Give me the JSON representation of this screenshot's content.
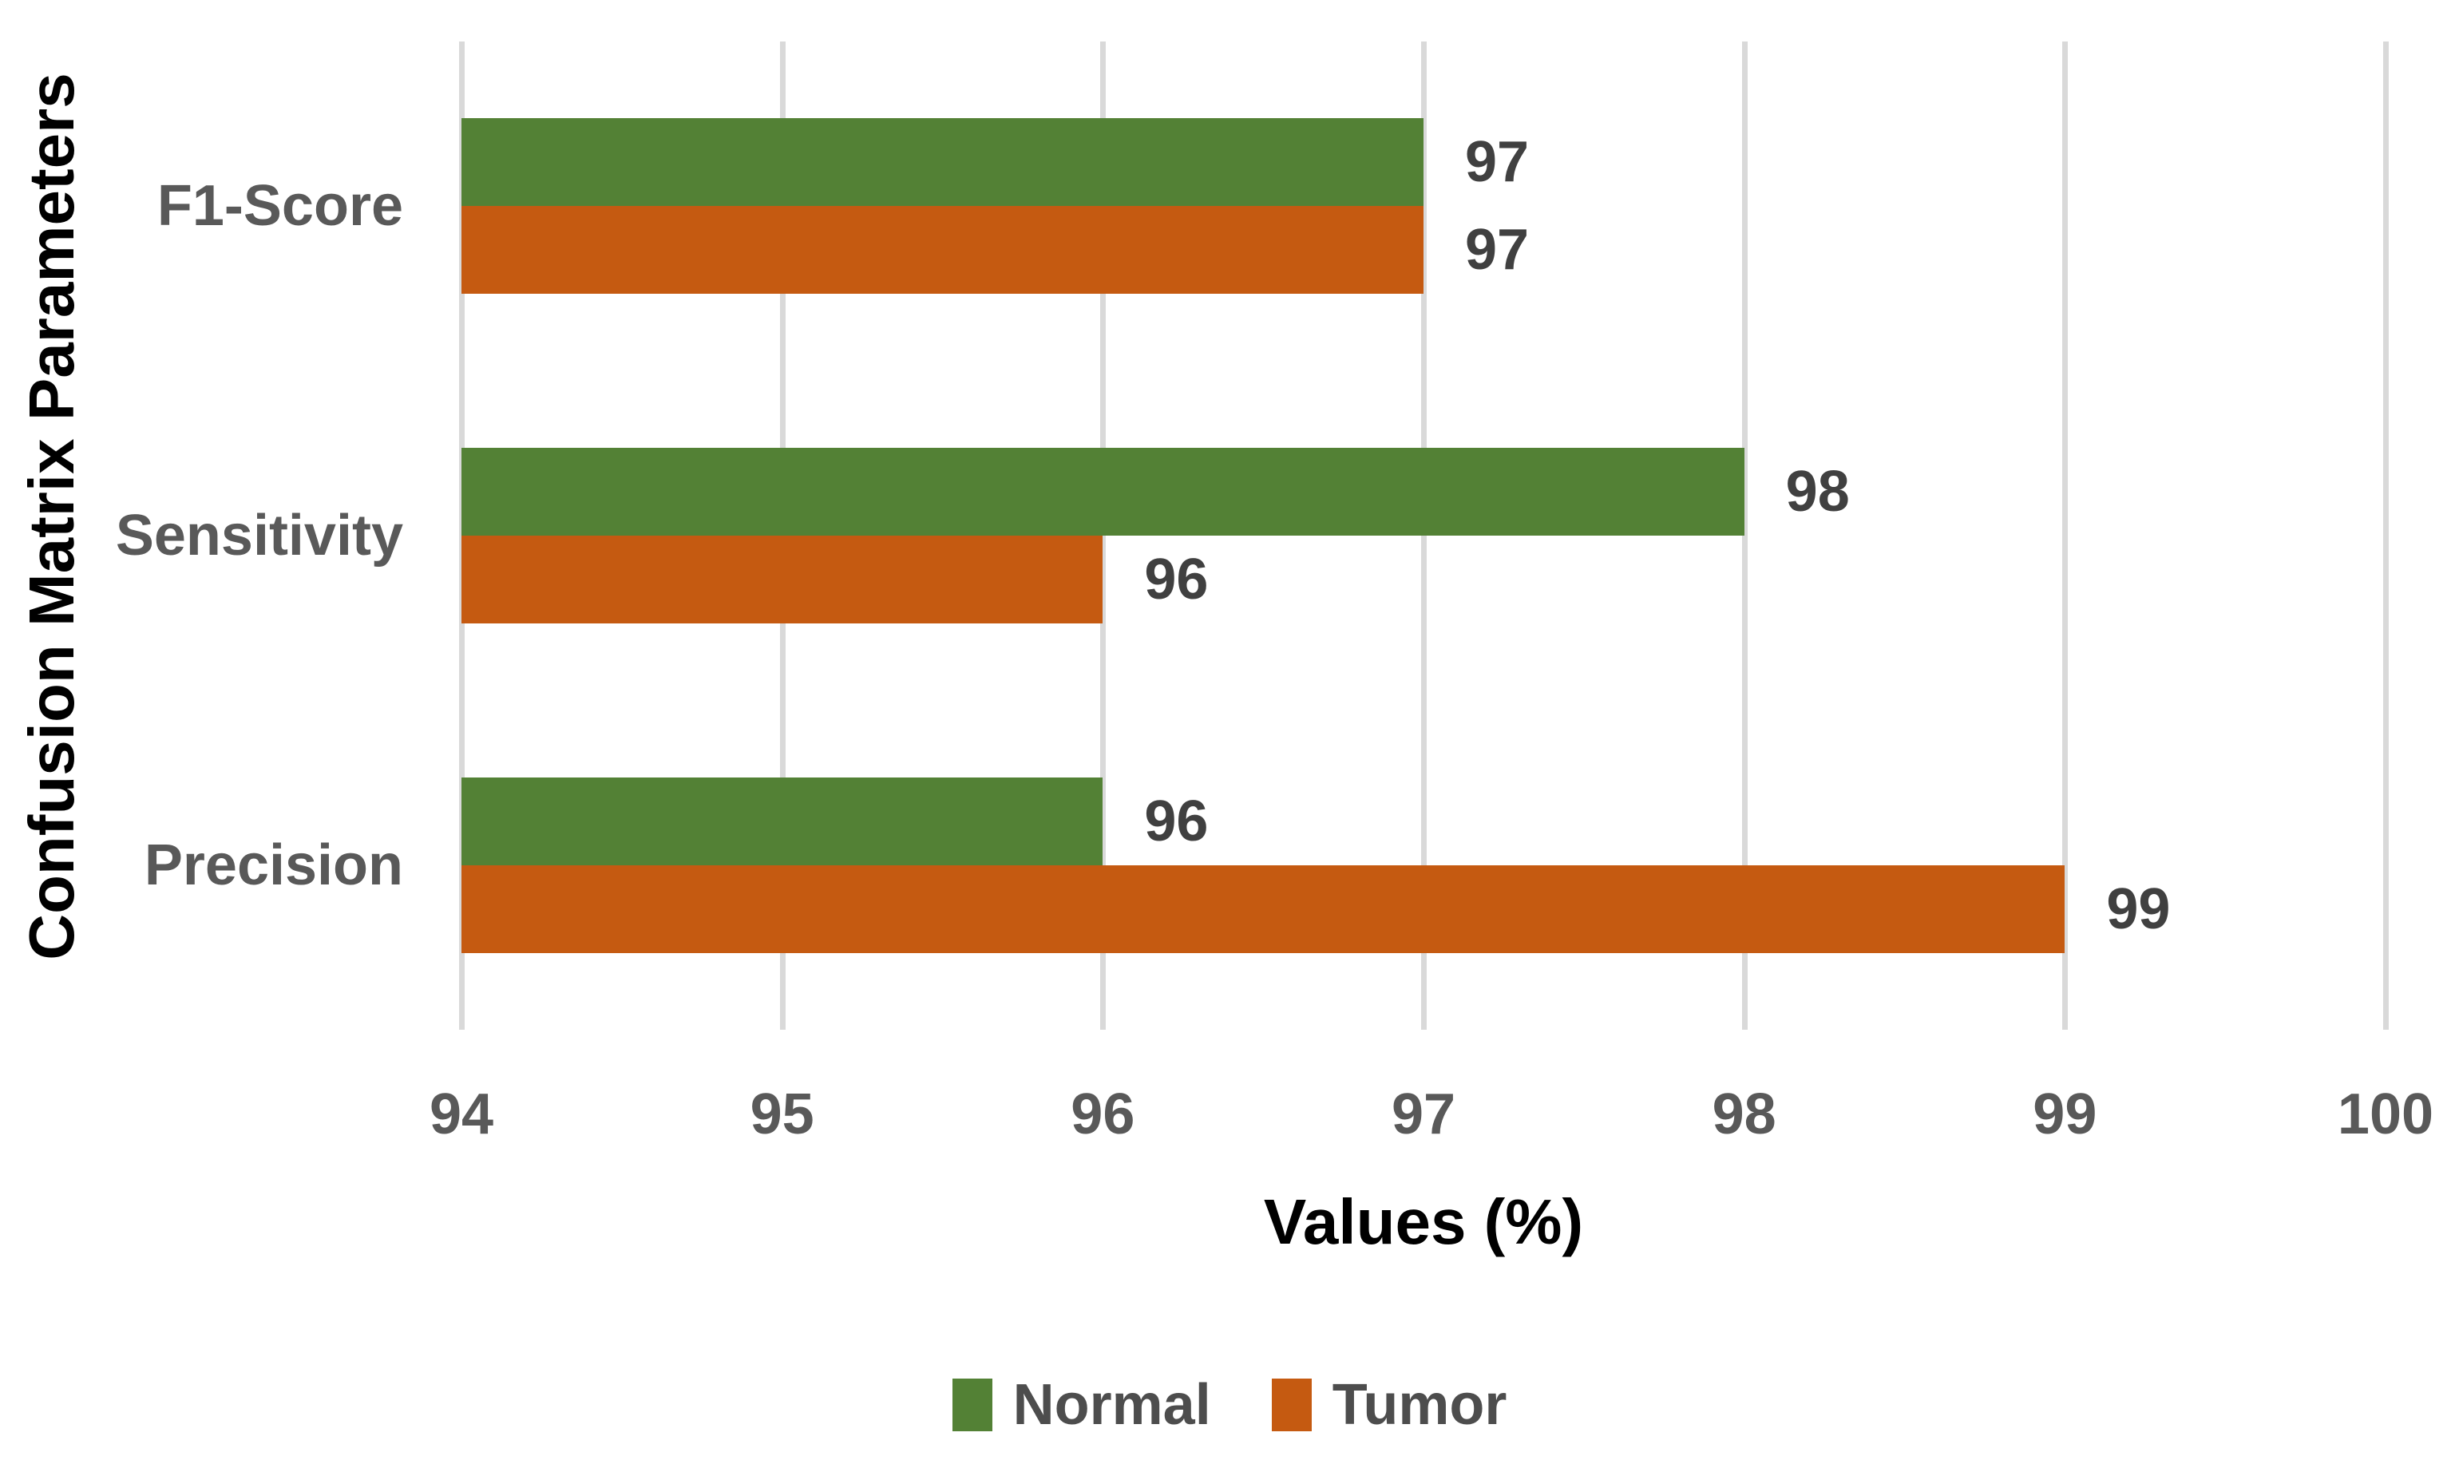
{
  "chart_data": {
    "type": "bar",
    "orientation": "horizontal",
    "categories": [
      "F1-Score",
      "Sensitivity",
      "Precision"
    ],
    "series": [
      {
        "name": "Normal",
        "color": "#538135",
        "values": [
          97,
          98,
          96
        ]
      },
      {
        "name": "Tumor",
        "color": "#C55A11",
        "values": [
          97,
          96,
          99
        ]
      }
    ],
    "xlabel": "Values (%)",
    "ylabel": "Confusion Matrix Parameters",
    "xlim": [
      94,
      100
    ],
    "xticks": [
      94,
      95,
      96,
      97,
      98,
      99,
      100
    ],
    "grid": true,
    "value_labels": true,
    "legend_position": "bottom"
  },
  "palette": {
    "gridline": "#d9d9d9",
    "axis_text": "#595959",
    "data_label": "#404040",
    "legend_text": "#4d4d4d",
    "background": "#ffffff"
  }
}
